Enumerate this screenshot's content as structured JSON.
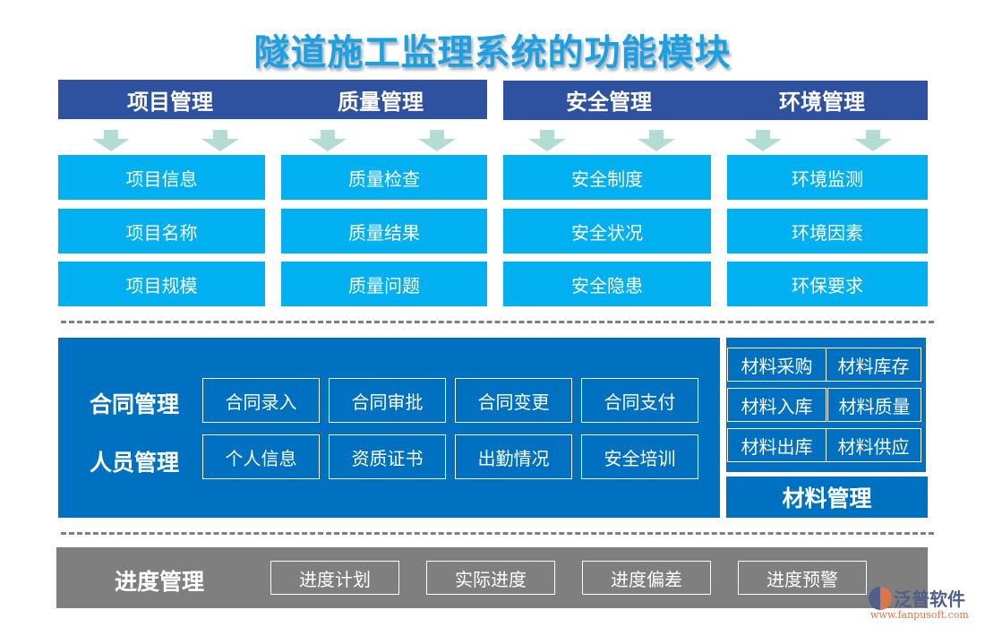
{
  "title": "隧道施工监理系统的功能模块",
  "colors": {
    "header": "#2f52a0",
    "arrow": "#b3ddd2",
    "cyan": "#00b0f0",
    "blue": "#0070c0",
    "gray": "#7f7f7f"
  },
  "top_modules": [
    {
      "name": "项目管理",
      "items": [
        "项目信息",
        "项目名称",
        "项目规模"
      ]
    },
    {
      "name": "质量管理",
      "items": [
        "质量检查",
        "质量结果",
        "质量问题"
      ]
    },
    {
      "name": "安全管理",
      "items": [
        "安全制度",
        "安全状况",
        "安全隐患"
      ]
    },
    {
      "name": "环境管理",
      "items": [
        "环境监测",
        "环境因素",
        "环保要求"
      ]
    }
  ],
  "contract": {
    "name": "合同管理",
    "items": [
      "合同录入",
      "合同审批",
      "合同变更",
      "合同支付"
    ]
  },
  "personnel": {
    "name": "人员管理",
    "items": [
      "个人信息",
      "资质证书",
      "出勤情况",
      "安全培训"
    ]
  },
  "material": {
    "name": "材料管理",
    "items": [
      "材料采购",
      "材料库存",
      "材料入库",
      "材料质量",
      "材料出库",
      "材料供应"
    ]
  },
  "progress": {
    "name": "进度管理",
    "items": [
      "进度计划",
      "实际进度",
      "进度偏差",
      "进度预警"
    ]
  },
  "logo": {
    "name": "泛普软件",
    "url": "www.fanpusoft.com"
  }
}
